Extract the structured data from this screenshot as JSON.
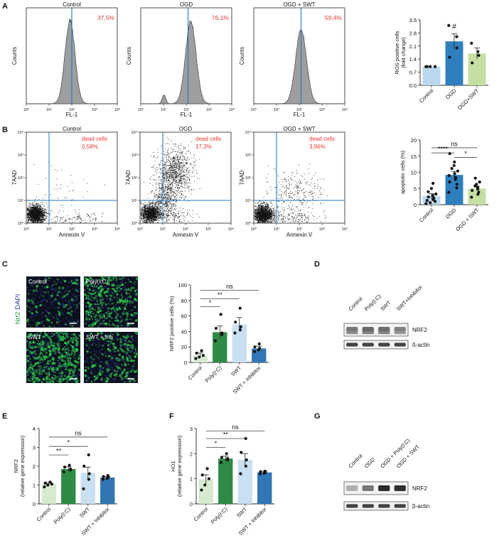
{
  "panel_letters": [
    "A",
    "B",
    "C",
    "D",
    "E",
    "F",
    "G"
  ],
  "panelA": {
    "ylabel": "Counts",
    "xlabel": "FL-1",
    "plots": [
      {
        "title": "Control",
        "percent": "37,5%"
      },
      {
        "title": "OGD",
        "percent": "76,1%"
      },
      {
        "title": "OGD + SWT",
        "percent": "59,4%"
      }
    ]
  },
  "panelB": {
    "xlabel": "Annexin V",
    "ylabel": "7AAD",
    "dead_label": "dead cells",
    "plots": [
      {
        "title": "Control",
        "percent": "0,58%"
      },
      {
        "title": "OGD",
        "percent": "17,3%"
      },
      {
        "title": "OGD + SWT",
        "percent": "3,96%"
      }
    ]
  },
  "panelC_images": {
    "stain_label_nrf2": "Nrf2",
    "stain_label_dapi": "DAPI",
    "tiles": [
      "Control",
      "Poly(I:C)",
      "SWT",
      "SWT + Inh"
    ]
  },
  "blotD": {
    "categories": [
      "Control",
      "Poly(I:C)",
      "SWT",
      "SWT+Inhibitor"
    ],
    "bands": [
      "NRF2",
      "ß-actin"
    ]
  },
  "blotG": {
    "categories": [
      "Control",
      "OGD",
      "OGD + Poly(I:C)",
      "OGD + SWT"
    ],
    "bands": [
      "NRF2",
      "β-actin"
    ]
  },
  "chart_data": [
    {
      "id": "A-histograms",
      "type": "area",
      "xlabel": "FL-1",
      "ylabel": "Counts",
      "x_ticks": [
        "10⁰",
        "10¹",
        "10²",
        "10³",
        "10⁴"
      ],
      "series": [
        {
          "name": "Control",
          "gate_percent": "37,5%"
        },
        {
          "name": "OGD",
          "gate_percent": "76,1%"
        },
        {
          "name": "OGD + SWT",
          "gate_percent": "59,4%"
        }
      ]
    },
    {
      "id": "A-bar",
      "type": "bar",
      "ylabel": "ROS positive cells",
      "ylabel2": "(fold change)",
      "categories": [
        "Control",
        "OGD",
        "OGD+SWT"
      ],
      "values": [
        1.0,
        2.35,
        1.7
      ],
      "errors": [
        0.0,
        0.4,
        0.3
      ],
      "points": [
        [
          1.0,
          1.0,
          1.0,
          1.0
        ],
        [
          3.2,
          2.6,
          2.0,
          1.5
        ],
        [
          2.25,
          1.8,
          1.6,
          1.2
        ]
      ],
      "colors": [
        "#b9d8ee",
        "#2f7fbf",
        "#c5dfa3"
      ],
      "ylim": [
        0,
        3.5
      ],
      "yticks": [
        "0.0",
        "0.7",
        "1.4",
        "2.1",
        "2.8",
        "3.5"
      ],
      "annotation": "#"
    },
    {
      "id": "B-dotplots",
      "type": "scatter",
      "xlabel": "Annexin V",
      "ylabel": "7AAD",
      "ticks": [
        "10⁰",
        "10¹",
        "10²",
        "10³",
        "10⁴"
      ],
      "series": [
        {
          "name": "Control",
          "dead_percent": "0,58%"
        },
        {
          "name": "OGD",
          "dead_percent": "17,3%"
        },
        {
          "name": "OGD + SWT",
          "dead_percent": "3,96%"
        }
      ]
    },
    {
      "id": "B-bar",
      "type": "bar",
      "ylabel": "apoptotic cells (%)",
      "categories": [
        "Control",
        "OGD",
        "OGD + SWT"
      ],
      "values": [
        2.6,
        9.2,
        5.0
      ],
      "errors": [
        0.8,
        1.1,
        0.7
      ],
      "points": [
        [
          0.3,
          0.6,
          1.0,
          1.3,
          1.6,
          2.0,
          2.4,
          2.8,
          3.3,
          4.0,
          5.0,
          6.6
        ],
        [
          3.8,
          5.2,
          6.3,
          7.0,
          7.8,
          8.4,
          9.0,
          9.6,
          10.4,
          11.2,
          12.1,
          13.2,
          15.8
        ],
        [
          2.3,
          3.2,
          3.9,
          4.4,
          4.9,
          5.3,
          5.8,
          6.3,
          7.0,
          8.2
        ]
      ],
      "colors": [
        "#b9d8ee",
        "#2f7fbf",
        "#c5dfa3"
      ],
      "ylim": [
        0,
        20
      ],
      "yticks": [
        "0",
        "5",
        "10",
        "15",
        "20"
      ],
      "comparisons": [
        {
          "from": 0,
          "to": 2,
          "label": "ns",
          "y": 17.6
        },
        {
          "from": 0,
          "to": 1,
          "label": "****",
          "y": 16.0
        },
        {
          "from": 1,
          "to": 2,
          "label": "*",
          "y": 14.6
        }
      ]
    },
    {
      "id": "C-bar",
      "type": "bar",
      "ylabel": "NRF2 positive cells (%)",
      "categories": [
        "Control",
        "Poly(I:C)",
        "SWT",
        "SWT + Inhibitor"
      ],
      "values": [
        9,
        39,
        49,
        18
      ],
      "errors": [
        3,
        8,
        9,
        3
      ],
      "points": [
        [
          5,
          7,
          9,
          12,
          15
        ],
        [
          28,
          36,
          38,
          44,
          62
        ],
        [
          38,
          42,
          46,
          52,
          70
        ],
        [
          14,
          16,
          18,
          20,
          24
        ]
      ],
      "colors": [
        "#d6ead0",
        "#2e8b45",
        "#c9dff2",
        "#3276b3"
      ],
      "ylim": [
        0,
        100
      ],
      "yticks": [
        "0",
        "20",
        "40",
        "60",
        "80",
        "100"
      ],
      "comparisons": [
        {
          "from": 0,
          "to": 3,
          "label": "ns",
          "y": 93
        },
        {
          "from": 0,
          "to": 2,
          "label": "**",
          "y": 82
        },
        {
          "from": 0,
          "to": 1,
          "label": "*",
          "y": 72
        }
      ]
    },
    {
      "id": "E-bar",
      "type": "bar",
      "ylabel": "NRF2",
      "ylabel2": "(relative gene expression)",
      "categories": [
        "Control",
        "Poly(I:C)",
        "SWT",
        "SWT + Inhibitor"
      ],
      "values": [
        1.05,
        1.85,
        1.65,
        1.4
      ],
      "errors": [
        0.08,
        0.12,
        0.3,
        0.06
      ],
      "points": [
        [
          0.9,
          1.0,
          1.05,
          1.1,
          1.15
        ],
        [
          1.7,
          1.8,
          1.85,
          1.95,
          2.05
        ],
        [
          0.8,
          1.3,
          1.6,
          2.0,
          2.6
        ],
        [
          1.3,
          1.35,
          1.4,
          1.45,
          1.5
        ]
      ],
      "colors": [
        "#d6ead0",
        "#2e8b45",
        "#c9dff2",
        "#3276b3"
      ],
      "ylim": [
        0,
        4
      ],
      "yticks": [
        "0",
        "1",
        "2",
        "3",
        "4"
      ],
      "comparisons": [
        {
          "from": 0,
          "to": 3,
          "label": "ns",
          "y": 3.55
        },
        {
          "from": 0,
          "to": 2,
          "label": "*",
          "y": 3.05
        },
        {
          "from": 0,
          "to": 1,
          "label": "**",
          "y": 2.6
        }
      ]
    },
    {
      "id": "F-bar",
      "type": "bar",
      "ylabel": "HO1",
      "ylabel2": "(relative gene expression)",
      "categories": [
        "Control",
        "Poly(I:C)",
        "SWT",
        "SWT + Inhibitor"
      ],
      "values": [
        0.98,
        1.8,
        1.75,
        1.25
      ],
      "errors": [
        0.18,
        0.1,
        0.25,
        0.05
      ],
      "points": [
        [
          0.55,
          0.75,
          1.0,
          1.15,
          1.4
        ],
        [
          1.65,
          1.75,
          1.8,
          1.85,
          2.0
        ],
        [
          1.2,
          1.5,
          1.75,
          2.05,
          2.6
        ],
        [
          1.2,
          1.22,
          1.25,
          1.28,
          1.3
        ]
      ],
      "colors": [
        "#d6ead0",
        "#2e8b45",
        "#c9dff2",
        "#3276b3"
      ],
      "ylim": [
        0,
        3
      ],
      "yticks": [
        "0",
        "1",
        "2",
        "3"
      ],
      "comparisons": [
        {
          "from": 0,
          "to": 3,
          "label": "ns",
          "y": 2.9
        },
        {
          "from": 0,
          "to": 2,
          "label": "**",
          "y": 2.6
        },
        {
          "from": 0,
          "to": 1,
          "label": "*",
          "y": 2.25
        }
      ]
    }
  ]
}
